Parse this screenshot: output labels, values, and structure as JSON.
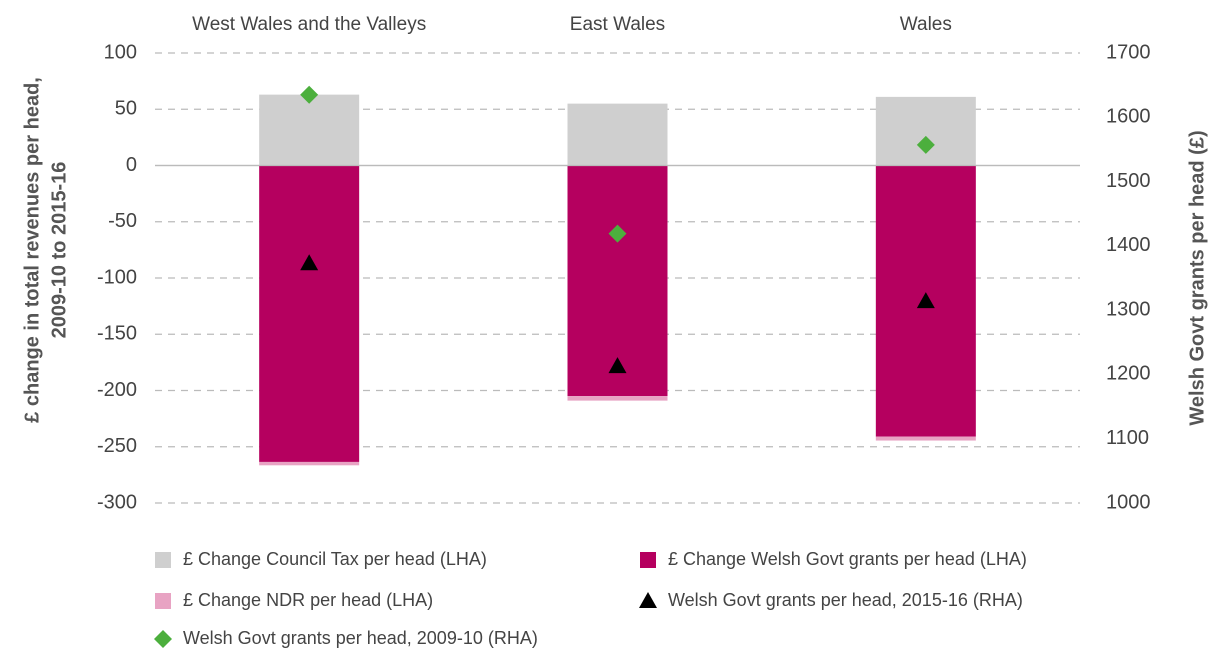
{
  "chart_data": {
    "type": "bar",
    "categories": [
      "West Wales and the Valleys",
      "East Wales",
      "Wales"
    ],
    "y_label": [
      "£ change in total revenues per head,",
      "2009-10 to 2015-16"
    ],
    "y2_label": "Welsh Govt grants per head (£)",
    "ylim": [
      -300,
      100
    ],
    "yticks": [
      -300,
      -250,
      -200,
      -150,
      -100,
      -50,
      0,
      50,
      100
    ],
    "y2lim": [
      1000,
      1700
    ],
    "y2ticks": [
      1000,
      1100,
      1200,
      1300,
      1400,
      1500,
      1600,
      1700
    ],
    "grid": true,
    "series": [
      {
        "name": "£ Change Council Tax per head (LHA)",
        "type": "bar",
        "color": "#cfcfcf",
        "values": [
          63,
          55,
          61
        ]
      },
      {
        "name": "£ Change Welsh Govt grants per head (LHA)",
        "type": "bar",
        "color": "#b5005f",
        "values": [
          -263.5,
          -205,
          -241
        ]
      },
      {
        "name": "£ Change NDR per head (LHA)",
        "type": "bar",
        "color": "#e8a3c3",
        "values": [
          -3,
          -4,
          -3.5
        ]
      },
      {
        "name": "Welsh Govt grants per head, 2015-16 (RHA)",
        "type": "scatter",
        "marker": "triangle",
        "axis": "y2",
        "color": "#000000",
        "values": [
          1373,
          1213,
          1314
        ]
      },
      {
        "name": "Welsh Govt grants per head, 2009-10 (RHA)",
        "type": "scatter",
        "marker": "diamond",
        "axis": "y2",
        "color": "#4caf3d",
        "values": [
          1635,
          1419,
          1557
        ]
      }
    ]
  }
}
